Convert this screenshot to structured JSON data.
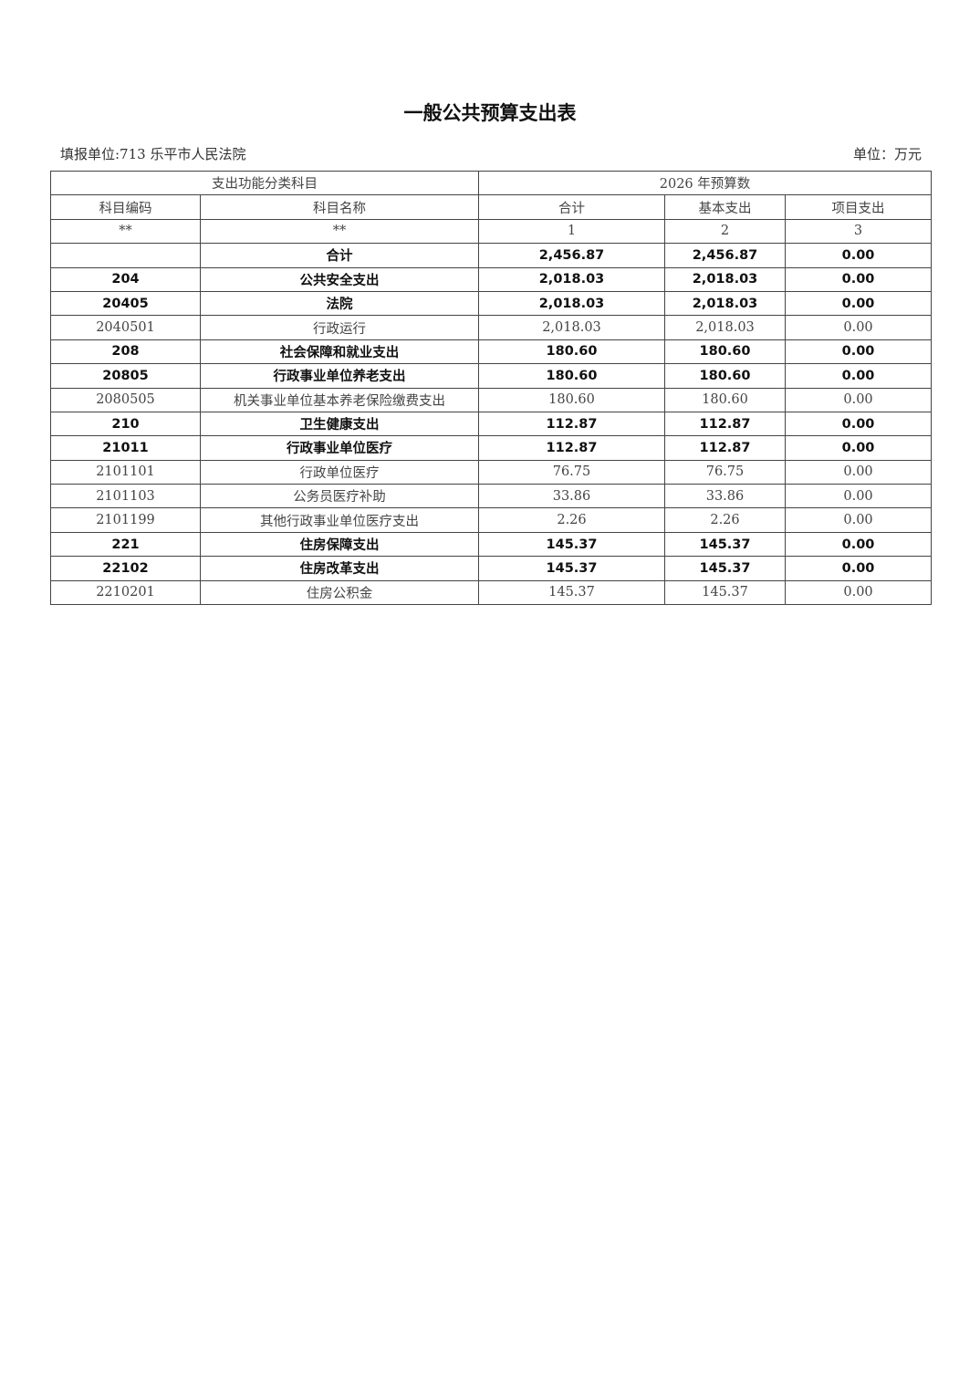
{
  "title": "一般公共预算支出表",
  "unit_label": "填报单位:713 乐平市人民法院",
  "currency_label": "单位：万元",
  "header": {
    "group1": "支出功能分类科目",
    "group2": "2026 年预算数",
    "code": "科目编码",
    "name": "科目名称",
    "total": "合计",
    "basic": "基本支出",
    "project": "项目支出",
    "idx_code": "**",
    "idx_name": "**",
    "idx1": "1",
    "idx2": "2",
    "idx3": "3"
  },
  "rows": [
    {
      "code": "",
      "name": "合计",
      "total": "2,456.87",
      "basic": "2,456.87",
      "project": "0.00",
      "bold": true
    },
    {
      "code": "204",
      "name": "公共安全支出",
      "total": "2,018.03",
      "basic": "2,018.03",
      "project": "0.00",
      "bold": true
    },
    {
      "code": "20405",
      "name": "法院",
      "total": "2,018.03",
      "basic": "2,018.03",
      "project": "0.00",
      "bold": true
    },
    {
      "code": "2040501",
      "name": "行政运行",
      "total": "2,018.03",
      "basic": "2,018.03",
      "project": "0.00",
      "bold": false
    },
    {
      "code": "208",
      "name": "社会保障和就业支出",
      "total": "180.60",
      "basic": "180.60",
      "project": "0.00",
      "bold": true
    },
    {
      "code": "20805",
      "name": "行政事业单位养老支出",
      "total": "180.60",
      "basic": "180.60",
      "project": "0.00",
      "bold": true
    },
    {
      "code": "2080505",
      "name": "机关事业单位基本养老保险缴费支出",
      "total": "180.60",
      "basic": "180.60",
      "project": "0.00",
      "bold": false
    },
    {
      "code": "210",
      "name": "卫生健康支出",
      "total": "112.87",
      "basic": "112.87",
      "project": "0.00",
      "bold": true
    },
    {
      "code": "21011",
      "name": "行政事业单位医疗",
      "total": "112.87",
      "basic": "112.87",
      "project": "0.00",
      "bold": true
    },
    {
      "code": "2101101",
      "name": "行政单位医疗",
      "total": "76.75",
      "basic": "76.75",
      "project": "0.00",
      "bold": false
    },
    {
      "code": "2101103",
      "name": "公务员医疗补助",
      "total": "33.86",
      "basic": "33.86",
      "project": "0.00",
      "bold": false
    },
    {
      "code": "2101199",
      "name": "其他行政事业单位医疗支出",
      "total": "2.26",
      "basic": "2.26",
      "project": "0.00",
      "bold": false
    },
    {
      "code": "221",
      "name": "住房保障支出",
      "total": "145.37",
      "basic": "145.37",
      "project": "0.00",
      "bold": true
    },
    {
      "code": "22102",
      "name": "住房改革支出",
      "total": "145.37",
      "basic": "145.37",
      "project": "0.00",
      "bold": true
    },
    {
      "code": "2210201",
      "name": "住房公积金",
      "total": "145.37",
      "basic": "145.37",
      "project": "0.00",
      "bold": false
    }
  ]
}
